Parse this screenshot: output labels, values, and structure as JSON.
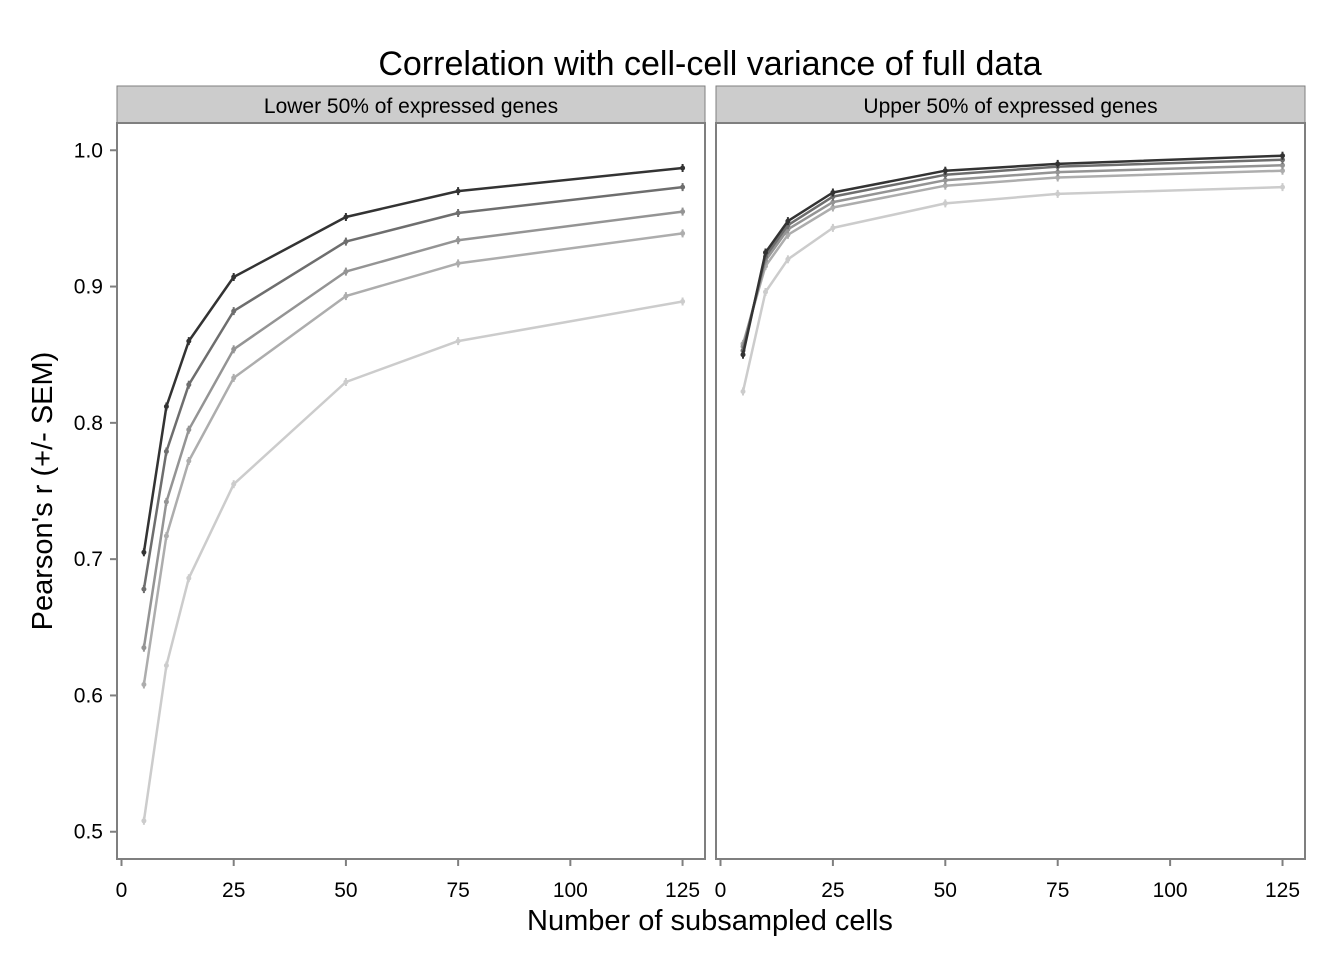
{
  "chart_data": {
    "type": "line",
    "title": "Correlation with cell-cell variance of full data",
    "xlabel": "Number of subsampled cells",
    "ylabel": "Pearson's r (+/- SEM)",
    "xlim": [
      -1,
      130
    ],
    "ylim": [
      0.48,
      1.02
    ],
    "x_ticks": [
      0,
      25,
      50,
      75,
      100,
      125
    ],
    "y_ticks": [
      0.5,
      0.6,
      0.7,
      0.8,
      0.9,
      1.0
    ],
    "y_tick_labels": [
      "0.5",
      "0.6",
      "0.7",
      "0.8",
      "0.9",
      "1.0"
    ],
    "x": [
      5,
      10,
      15,
      25,
      50,
      75,
      125
    ],
    "series_colors": [
      "#333333",
      "#6e6e6e",
      "#949494",
      "#adadad",
      "#cccccc"
    ],
    "panels": [
      {
        "label": "Lower 50% of expressed genes",
        "series": [
          {
            "values": [
              0.705,
              0.812,
              0.86,
              0.907,
              0.951,
              0.97,
              0.987
            ]
          },
          {
            "values": [
              0.678,
              0.779,
              0.828,
              0.882,
              0.933,
              0.954,
              0.973
            ]
          },
          {
            "values": [
              0.635,
              0.742,
              0.795,
              0.854,
              0.911,
              0.934,
              0.955
            ]
          },
          {
            "values": [
              0.608,
              0.717,
              0.772,
              0.833,
              0.893,
              0.917,
              0.939
            ]
          },
          {
            "values": [
              0.508,
              0.622,
              0.686,
              0.755,
              0.83,
              0.86,
              0.889
            ]
          }
        ]
      },
      {
        "label": "Upper 50% of expressed genes",
        "series": [
          {
            "values": [
              0.85,
              0.925,
              0.948,
              0.969,
              0.985,
              0.99,
              0.996
            ]
          },
          {
            "values": [
              0.853,
              0.922,
              0.945,
              0.966,
              0.982,
              0.988,
              0.993
            ]
          },
          {
            "values": [
              0.856,
              0.919,
              0.942,
              0.962,
              0.978,
              0.984,
              0.989
            ]
          },
          {
            "values": [
              0.858,
              0.915,
              0.938,
              0.958,
              0.974,
              0.98,
              0.985
            ]
          },
          {
            "values": [
              0.823,
              0.896,
              0.92,
              0.943,
              0.961,
              0.968,
              0.973
            ]
          }
        ]
      }
    ]
  }
}
